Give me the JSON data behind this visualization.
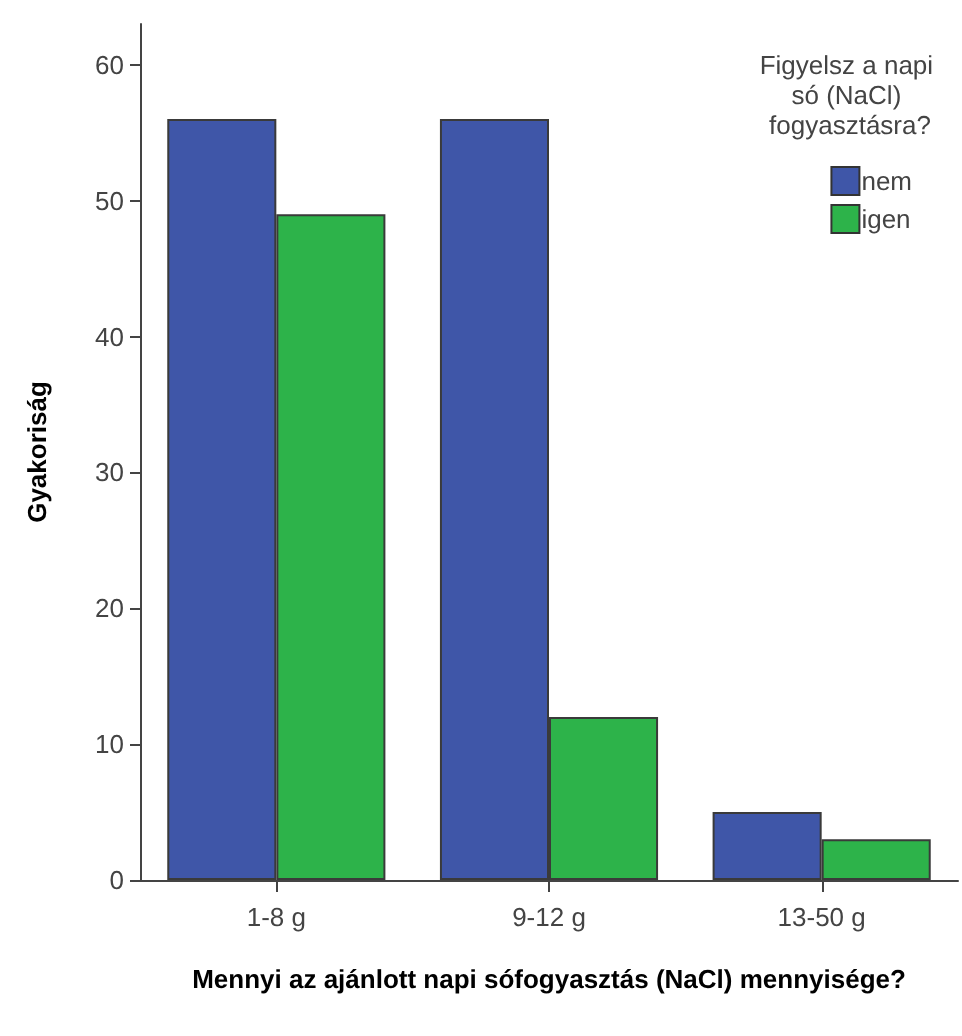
{
  "chart_data": {
    "type": "bar",
    "xlabel": "Mennyi az ajánlott napi sófogyasztás (NaCl) mennyisége?",
    "ylabel": "Gyakoriság",
    "legend_title": "Figyelsz a napi só (NaCl) fogyasztásra?",
    "categories": [
      "1-8 g",
      "9-12 g",
      "13-50 g"
    ],
    "series": [
      {
        "name": "nem",
        "color": "#3f56a8",
        "values": [
          56,
          56,
          5
        ]
      },
      {
        "name": "igen",
        "color": "#2db34a",
        "values": [
          49,
          12,
          3
        ]
      }
    ],
    "ylim": [
      0,
      63
    ],
    "yticks": [
      0,
      10,
      20,
      30,
      40,
      50,
      60
    ],
    "grid": false,
    "legend": "top right"
  }
}
